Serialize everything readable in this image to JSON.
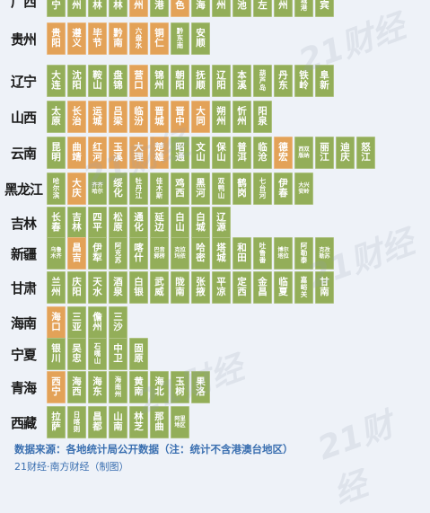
{
  "colors": {
    "green": "#93ae59",
    "orange": "#e3a258",
    "background": "#eef2f8",
    "source_text": "#3a6fb0"
  },
  "watermark": "21财经",
  "rows": [
    {
      "province": "广西",
      "cities": [
        [
          "南宁",
          "g"
        ],
        [
          "柳州",
          "g"
        ],
        [
          "桂林",
          "g"
        ],
        [
          "玉林",
          "g"
        ],
        [
          "钦州",
          "o"
        ],
        [
          "贵港",
          "g"
        ],
        [
          "百色",
          "o"
        ],
        [
          "北海",
          "g"
        ],
        [
          "梧州",
          "g"
        ],
        [
          "河池",
          "g"
        ],
        [
          "崇左",
          "g"
        ],
        [
          "贺州",
          "g"
        ],
        [
          "防城港",
          "g"
        ],
        [
          "来宾",
          "g"
        ]
      ]
    },
    {
      "province": "贵州",
      "cities": [
        [
          "贵阳",
          "o"
        ],
        [
          "遵义",
          "o"
        ],
        [
          "毕节",
          "o"
        ],
        [
          "黔南",
          "o"
        ],
        [
          "六盘水",
          "o"
        ],
        [
          "铜仁",
          "o"
        ],
        [
          "黔东南",
          "g"
        ],
        [
          "安顺",
          "g"
        ]
      ]
    },
    {
      "province": "辽宁",
      "cities": [
        [
          "大连",
          "g"
        ],
        [
          "沈阳",
          "g"
        ],
        [
          "鞍山",
          "g"
        ],
        [
          "盘锦",
          "g"
        ],
        [
          "营口",
          "o"
        ],
        [
          "锦州",
          "g"
        ],
        [
          "朝阳",
          "g"
        ],
        [
          "抚顺",
          "g"
        ],
        [
          "辽阳",
          "g"
        ],
        [
          "本溪",
          "g"
        ],
        [
          "葫芦岛",
          "g"
        ],
        [
          "丹东",
          "g"
        ],
        [
          "铁岭",
          "g"
        ],
        [
          "阜新",
          "g"
        ]
      ]
    },
    {
      "province": "山西",
      "cities": [
        [
          "太原",
          "g"
        ],
        [
          "长治",
          "o"
        ],
        [
          "运城",
          "o"
        ],
        [
          "吕梁",
          "o"
        ],
        [
          "临汾",
          "o"
        ],
        [
          "晋城",
          "o"
        ],
        [
          "晋中",
          "o"
        ],
        [
          "大同",
          "o"
        ],
        [
          "朔州",
          "g"
        ],
        [
          "忻州",
          "g"
        ],
        [
          "阳泉",
          "g"
        ]
      ]
    },
    {
      "province": "云南",
      "cities": [
        [
          "昆明",
          "g"
        ],
        [
          "曲靖",
          "o"
        ],
        [
          "红河",
          "o"
        ],
        [
          "玉溪",
          "o"
        ],
        [
          "大理",
          "o"
        ],
        [
          "楚雄",
          "o"
        ],
        [
          "昭通",
          "g"
        ],
        [
          "文山",
          "g"
        ],
        [
          "保山",
          "g"
        ],
        [
          "普洱",
          "g"
        ],
        [
          "临沧",
          "g"
        ],
        [
          "德宏",
          "o"
        ],
        [
          "西双版纳",
          "g"
        ],
        [
          "丽江",
          "g"
        ],
        [
          "迪庆",
          "g"
        ],
        [
          "怒江",
          "g"
        ]
      ]
    },
    {
      "province": "黑龙江",
      "cities": [
        [
          "哈尔滨",
          "g"
        ],
        [
          "大庆",
          "o"
        ],
        [
          "齐齐哈尔",
          "g"
        ],
        [
          "绥化",
          "g"
        ],
        [
          "牡丹江",
          "g"
        ],
        [
          "佳木斯",
          "g"
        ],
        [
          "鸡西",
          "g"
        ],
        [
          "黑河",
          "g"
        ],
        [
          "双鸭山",
          "g"
        ],
        [
          "鹤岗",
          "g"
        ],
        [
          "七台河",
          "g"
        ],
        [
          "伊春",
          "g"
        ],
        [
          "大兴安岭",
          "g"
        ]
      ]
    },
    {
      "province": "吉林",
      "cities": [
        [
          "长春",
          "g"
        ],
        [
          "吉林",
          "g"
        ],
        [
          "四平",
          "g"
        ],
        [
          "松原",
          "g"
        ],
        [
          "通化",
          "g"
        ],
        [
          "延边",
          "g"
        ],
        [
          "白山",
          "g"
        ],
        [
          "白城",
          "g"
        ],
        [
          "辽源",
          "g"
        ]
      ]
    },
    {
      "province": "新疆",
      "cities": [
        [
          "乌鲁木齐",
          "g"
        ],
        [
          "昌吉",
          "o"
        ],
        [
          "伊犁",
          "g"
        ],
        [
          "阿克苏",
          "g"
        ],
        [
          "喀什",
          "g"
        ],
        [
          "巴音郭楞",
          "g"
        ],
        [
          "克拉玛依",
          "g"
        ],
        [
          "哈密",
          "g"
        ],
        [
          "塔城",
          "g"
        ],
        [
          "和田",
          "g"
        ],
        [
          "吐鲁番",
          "g"
        ],
        [
          "博尔塔拉",
          "g"
        ],
        [
          "阿勒泰",
          "g"
        ],
        [
          "克孜勒苏",
          "g"
        ]
      ]
    },
    {
      "province": "甘肃",
      "cities": [
        [
          "兰州",
          "g"
        ],
        [
          "庆阳",
          "g"
        ],
        [
          "天水",
          "g"
        ],
        [
          "酒泉",
          "g"
        ],
        [
          "白银",
          "g"
        ],
        [
          "武威",
          "g"
        ],
        [
          "陇南",
          "g"
        ],
        [
          "张掖",
          "g"
        ],
        [
          "平凉",
          "g"
        ],
        [
          "定西",
          "g"
        ],
        [
          "金昌",
          "g"
        ],
        [
          "临夏",
          "g"
        ],
        [
          "嘉峪关",
          "g"
        ],
        [
          "甘南",
          "g"
        ]
      ]
    },
    {
      "province": "海南",
      "cities": [
        [
          "海口",
          "o"
        ],
        [
          "三亚",
          "g"
        ],
        [
          "儋州",
          "g"
        ],
        [
          "三沙",
          "g"
        ]
      ]
    },
    {
      "province": "宁夏",
      "cities": [
        [
          "银川",
          "g"
        ],
        [
          "吴忠",
          "g"
        ],
        [
          "石嘴山",
          "g"
        ],
        [
          "中卫",
          "g"
        ],
        [
          "固原",
          "g"
        ]
      ]
    },
    {
      "province": "青海",
      "cities": [
        [
          "西宁",
          "o"
        ],
        [
          "海西",
          "g"
        ],
        [
          "海东",
          "g"
        ],
        [
          "海南州",
          "g"
        ],
        [
          "黄南",
          "g"
        ],
        [
          "海北",
          "g"
        ],
        [
          "玉树",
          "g"
        ],
        [
          "果洛",
          "g"
        ]
      ]
    },
    {
      "province": "西藏",
      "cities": [
        [
          "拉萨",
          "g"
        ],
        [
          "日喀则",
          "g"
        ],
        [
          "昌都",
          "g"
        ],
        [
          "山南",
          "g"
        ],
        [
          "林芝",
          "g"
        ],
        [
          "那曲",
          "g"
        ],
        [
          "阿里地区",
          "g"
        ]
      ]
    }
  ],
  "source": "数据来源：各地统计局公开数据（注：统计不含港澳台地区）",
  "source_partial": "21财经·南方财经（制图）"
}
